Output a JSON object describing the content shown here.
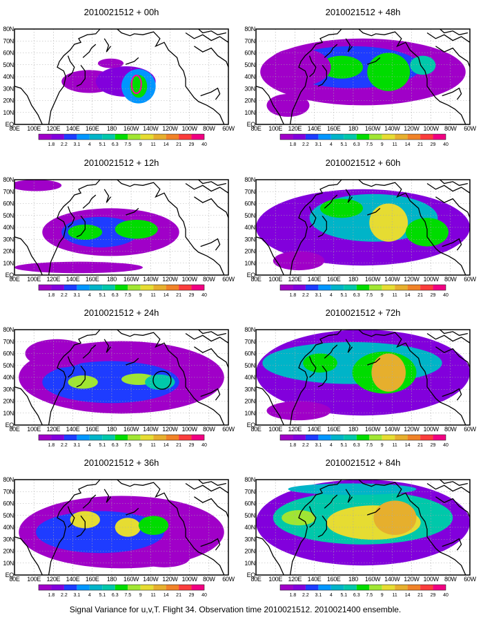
{
  "caption": "Signal Variance for u,v,T. Flight 34. Observation time 2010021512. 2010021400 ensemble.",
  "panels": [
    {
      "title": "2010021512 + 00h"
    },
    {
      "title": "2010021512 + 48h"
    },
    {
      "title": "2010021512 + 12h"
    },
    {
      "title": "2010021512 + 60h"
    },
    {
      "title": "2010021512 + 24h"
    },
    {
      "title": "2010021512 + 72h"
    },
    {
      "title": "2010021512 + 36h"
    },
    {
      "title": "2010021512 + 84h"
    }
  ],
  "lon_ticks": [
    "80E",
    "100E",
    "120E",
    "140E",
    "160E",
    "180",
    "160W",
    "140W",
    "120W",
    "100W",
    "80W",
    "60W"
  ],
  "lat_ticks": [
    "EQ",
    "10N",
    "20N",
    "30N",
    "40N",
    "50N",
    "60N",
    "70N",
    "80N"
  ],
  "colorbar": {
    "labels": [
      "1.8",
      "2.2",
      "3.1",
      "4",
      "5.1",
      "6.3",
      "7.5",
      "9",
      "11",
      "14",
      "21",
      "29",
      "40"
    ],
    "colors": [
      "#a000c8",
      "#8200dc",
      "#1e3cff",
      "#0096ff",
      "#00b4c8",
      "#00c8aa",
      "#00dc00",
      "#a0e632",
      "#e6dc32",
      "#e6af2d",
      "#f08228",
      "#fa3c3c",
      "#f00082"
    ]
  },
  "coast_color": "#000000",
  "grid_color": "#aaaaaa"
}
